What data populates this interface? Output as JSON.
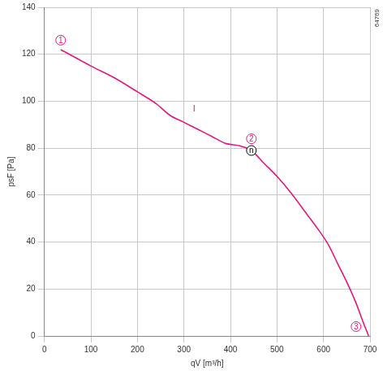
{
  "chart_data": {
    "type": "line",
    "x_label": "qV [m³/h]",
    "y_label": "psF [Pa]",
    "code": "64769",
    "xlim": [
      0,
      700
    ],
    "xticks": [
      0,
      100,
      200,
      300,
      400,
      500,
      600,
      700
    ],
    "ylim": [
      0,
      140
    ],
    "yticks": [
      0,
      20,
      40,
      60,
      80,
      100,
      120,
      140
    ],
    "grid": true,
    "color": "#e2197d",
    "x": [
      35,
      100,
      150,
      200,
      240,
      270,
      300,
      330,
      360,
      390,
      420,
      445,
      470,
      500,
      530,
      560,
      590,
      610,
      630,
      650,
      670,
      685,
      697
    ],
    "values": [
      122,
      115,
      110,
      104,
      99,
      94,
      91,
      88,
      85,
      82,
      81,
      79,
      74,
      68,
      61,
      53,
      45,
      39,
      31,
      23,
      14,
      6,
      0
    ],
    "annotations": [
      {
        "text": "1",
        "x": 35,
        "y": 126,
        "marker": "circle",
        "color": "#e2197d"
      },
      {
        "text": "I",
        "x": 322,
        "y": 97,
        "color": "#e2197d"
      },
      {
        "text": "2",
        "x": 445,
        "y": 84,
        "marker": "circle",
        "color": "#e2197d"
      },
      {
        "text": "n",
        "x": 445,
        "y": 79,
        "marker": "circle",
        "color": "#000000"
      },
      {
        "text": "3",
        "x": 670,
        "y": 4,
        "marker": "circle",
        "color": "#e2197d"
      }
    ]
  }
}
